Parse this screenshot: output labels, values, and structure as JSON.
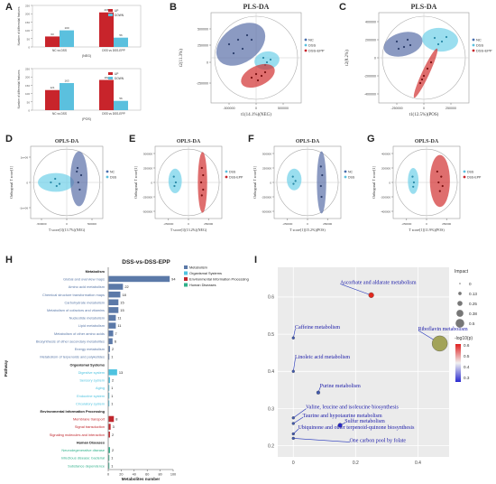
{
  "panel_letters": {
    "A": "A",
    "B": "B",
    "C": "C",
    "D": "D",
    "E": "E",
    "F": "F",
    "G": "G",
    "H": "H",
    "I": "I"
  },
  "colors": {
    "nc": "#4a6fae",
    "dss": "#5bc0de",
    "epp": "#c8242b",
    "nc_fill": "#5a6fa8",
    "dss_fill": "#6fd0e8",
    "epp_fill": "#d23030"
  },
  "chart_data": [
    {
      "panel": "A-top",
      "type": "bar",
      "ylabel": "Number of differential features",
      "xlabel": "(NEG)",
      "categories": [
        "NC vs DSS",
        "DSS vs DSS-EPP"
      ],
      "series": [
        {
          "name": "UP",
          "values": [
            63,
            208
          ]
        },
        {
          "name": "DOWN",
          "values": [
            100,
            56
          ]
        }
      ],
      "ylim": [
        0,
        250
      ]
    },
    {
      "panel": "A-bottom",
      "type": "bar",
      "ylabel": "Number of differential features",
      "xlabel": "(POS)",
      "categories": [
        "NC vs DSS",
        "DSS vs DSS-EPP"
      ],
      "series": [
        {
          "name": "UP",
          "values": [
            121,
            182
          ]
        },
        {
          "name": "DOWN",
          "values": [
            163,
            56
          ]
        }
      ],
      "ylim": [
        0,
        250
      ]
    },
    {
      "panel": "B",
      "type": "scatter",
      "title": "PLS-DA",
      "xlabel": "t1(14.1%)(NEG)",
      "ylabel": "t2(11.3%)",
      "xticks": [
        "-500000",
        "0",
        "500000"
      ],
      "yticks": [
        "500000",
        "250000",
        "0",
        "-250000"
      ],
      "legend": [
        "NC",
        "DSS",
        "DSS-EPP"
      ]
    },
    {
      "panel": "C",
      "type": "scatter",
      "title": "PLS-DA",
      "xlabel": "t1(12.5%)(POS)",
      "ylabel": "t2(8.2%)",
      "xticks": [
        "-250000",
        "0",
        "250000"
      ],
      "yticks": [
        "400000",
        "200000",
        "0",
        "-200000",
        "-400000"
      ],
      "legend": [
        "NC",
        "DSS",
        "DSS-EPP"
      ]
    },
    {
      "panel": "D",
      "type": "scatter",
      "title": "OPLS-DA",
      "xlabel": "T score[1](13.7%)(NEG)",
      "ylabel": "Orthogonal T score[1]",
      "xticks": [
        "-500000",
        "0",
        "500000"
      ],
      "yticks": [
        "1e+06",
        "0",
        "-1e+06"
      ],
      "legend": [
        "NC",
        "DSS"
      ]
    },
    {
      "panel": "E",
      "type": "scatter",
      "title": "OPLS-DA",
      "xlabel": "T score[1](13.2%)(NEG)",
      "ylabel": "Orthogonal T score[1]",
      "xticks": [
        "-250000",
        "0",
        "250000"
      ],
      "yticks": [
        "500000",
        "250000",
        "0",
        "-250000",
        "-500000"
      ],
      "legend": [
        "DSS",
        "DSS-EPP"
      ]
    },
    {
      "panel": "F",
      "type": "scatter",
      "title": "OPLS-DA",
      "xlabel": "T score[1](15.2%)(POS)",
      "ylabel": "Orthogonal T score[1]",
      "xticks": [
        "-250000",
        "0",
        "250000"
      ],
      "yticks": [
        "500000",
        "250000",
        "0",
        "-250000",
        "-500000"
      ],
      "legend": [
        "NC",
        "DSS"
      ]
    },
    {
      "panel": "G",
      "type": "scatter",
      "title": "OPLS-DA",
      "xlabel": "T score[1](11.9%)(POS)",
      "ylabel": "Orthogonal T score[1]",
      "xticks": [
        "-250000",
        "0",
        "250000"
      ],
      "yticks": [
        "400000",
        "200000",
        "0",
        "-200000",
        "-400000"
      ],
      "legend": [
        "DSS",
        "DSS-EPP"
      ]
    },
    {
      "panel": "H",
      "type": "bar",
      "orientation": "horizontal",
      "title": "DSS-vs-DSS-EPP",
      "xlabel": "Metabolites number",
      "ylabel": "Pathway",
      "xticks": [
        0,
        20,
        40,
        60,
        80,
        100
      ],
      "xlim": [
        0,
        100
      ],
      "legend": [
        "Metabolism",
        "Organismal Systems",
        "Environmental Information Processing",
        "Human Diseases"
      ],
      "groups": [
        {
          "name": "Metabolism",
          "color": "#5b79a8",
          "items": [
            {
              "label": "Global and overview maps",
              "value": 94
            },
            {
              "label": "Amino acid metabolism",
              "value": 22
            },
            {
              "label": "Chemical structure transformation maps",
              "value": 18
            },
            {
              "label": "Carbohydrate metabolism",
              "value": 15
            },
            {
              "label": "Metabolism of cofactors and vitamins",
              "value": 15
            },
            {
              "label": "Nucleotide metabolism",
              "value": 11
            },
            {
              "label": "Lipid metabolism",
              "value": 11
            },
            {
              "label": "Metabolism of other amino acids",
              "value": 7
            },
            {
              "label": "Biosynthesis of other secondary metabolites",
              "value": 6
            },
            {
              "label": "Energy metabolism",
              "value": 2
            },
            {
              "label": "Metabolism of terpenoids and polyketides",
              "value": 1
            }
          ]
        },
        {
          "name": "Organismal Systems",
          "color": "#4fc3e0",
          "items": [
            {
              "label": "Digestive system",
              "value": 13
            },
            {
              "label": "Sensory system",
              "value": 2
            },
            {
              "label": "Aging",
              "value": 1
            },
            {
              "label": "Endocrine system",
              "value": 1
            },
            {
              "label": "Circulatory system",
              "value": 1
            }
          ]
        },
        {
          "name": "Environmental Information Processing",
          "color": "#c0272d",
          "items": [
            {
              "label": "Membrane transport",
              "value": 8
            },
            {
              "label": "Signal transduction",
              "value": 3
            },
            {
              "label": "Signaling molecules and interaction",
              "value": 2
            }
          ]
        },
        {
          "name": "Human Diseases",
          "color": "#2fb08a",
          "items": [
            {
              "label": "Neurodegenerative disease",
              "value": 2
            },
            {
              "label": "Infectious disease: bacterial",
              "value": 1
            },
            {
              "label": "Substance dependence",
              "value": 1
            }
          ]
        }
      ]
    },
    {
      "panel": "I",
      "type": "scatter",
      "xticks": [
        "0",
        "0.2",
        "0.4"
      ],
      "yticks": [
        "0.2",
        "0.3",
        "0.4",
        "0.5",
        "0.6"
      ],
      "xlim": [
        -0.05,
        0.5
      ],
      "ylim": [
        0.17,
        0.68
      ],
      "size_legend_title": "Impact",
      "size_legend": [
        "0",
        "0.13",
        "0.25",
        "0.38",
        "0.5"
      ],
      "color_legend_title": "-log10(p)",
      "color_legend": [
        "0.6",
        "0.5",
        "0.4",
        "0.3"
      ],
      "points": [
        {
          "label": "Ascorbate and aldarate metabolism",
          "x": 0.25,
          "y": 0.605,
          "impact": 0.1,
          "p": 0.6,
          "lx": 0.15,
          "ly": 0.635
        },
        {
          "label": "Riboflavin metabolism",
          "x": 0.47,
          "y": 0.475,
          "impact": 0.5,
          "p": 0.48,
          "lx": 0.4,
          "ly": 0.51
        },
        {
          "label": "Caffeine metabolism",
          "x": 0.0,
          "y": 0.49,
          "impact": 0,
          "p": 0.3,
          "lx": 0.005,
          "ly": 0.515
        },
        {
          "label": "Linoleic acid metabolism",
          "x": 0.0,
          "y": 0.4,
          "impact": 0,
          "p": 0.3,
          "lx": 0.005,
          "ly": 0.435
        },
        {
          "label": "Purine metabolism",
          "x": 0.08,
          "y": 0.343,
          "impact": 0.03,
          "p": 0.3,
          "lx": 0.085,
          "ly": 0.357
        },
        {
          "label": "Valine, leucine and isoleucine biosynthesis",
          "x": 0.0,
          "y": 0.275,
          "impact": 0,
          "p": 0.3,
          "lx": 0.04,
          "ly": 0.3
        },
        {
          "label": "Taurine and hypotaurine metabolism",
          "x": 0.0,
          "y": 0.26,
          "impact": 0,
          "p": 0.3,
          "lx": 0.03,
          "ly": 0.277
        },
        {
          "label": "Sulfur metabolism",
          "x": 0.15,
          "y": 0.255,
          "impact": 0.06,
          "p": 0.25,
          "lx": 0.165,
          "ly": 0.262
        },
        {
          "label": "Ubiquinone and other terpenoid-quinone biosynthesis",
          "x": 0.0,
          "y": 0.232,
          "impact": 0,
          "p": 0.3,
          "lx": 0.015,
          "ly": 0.245
        },
        {
          "label": "One carbon pool by folate",
          "x": 0.0,
          "y": 0.22,
          "impact": 0,
          "p": 0.3,
          "lx": 0.18,
          "ly": 0.21
        }
      ]
    }
  ]
}
